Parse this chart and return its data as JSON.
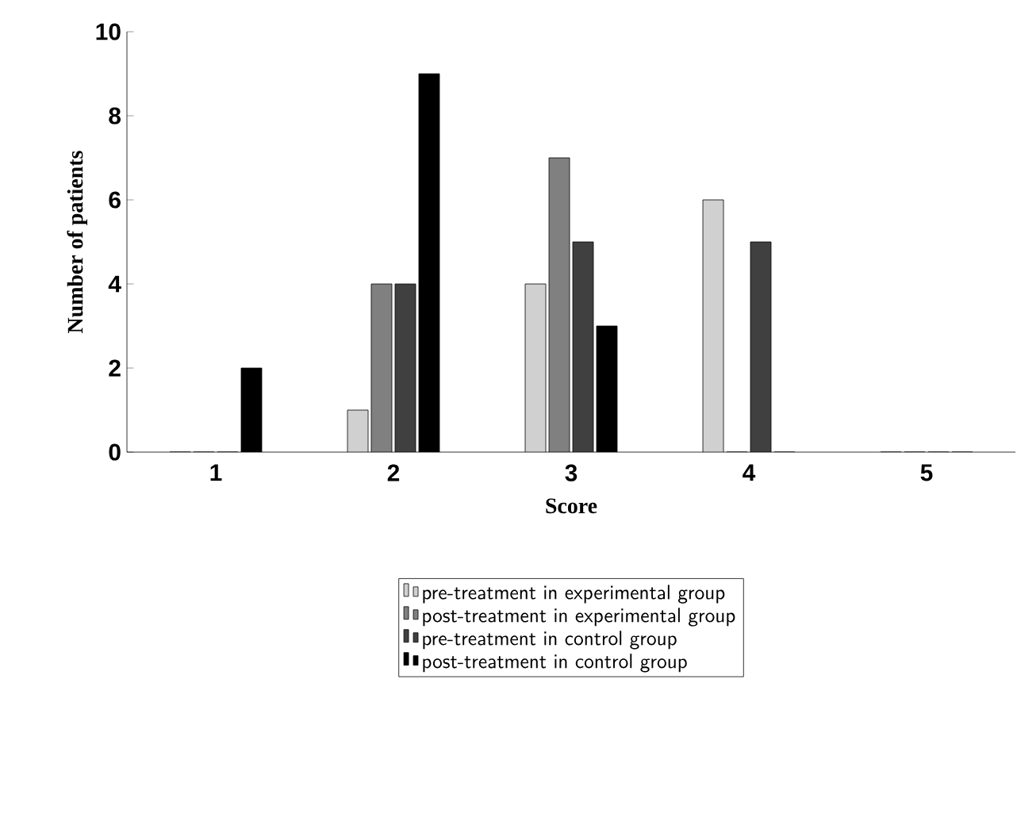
{
  "chart_data": {
    "type": "bar",
    "xlabel": "Score",
    "ylabel": "Number of patients",
    "categories": [
      "1",
      "2",
      "3",
      "4",
      "5"
    ],
    "series": [
      {
        "name": "pre-treatment in experimental group",
        "color": "#d0d0d0",
        "values": [
          0,
          1,
          4,
          6,
          0
        ]
      },
      {
        "name": "post-treatment in experimental group",
        "color": "#808080",
        "values": [
          0,
          4,
          7,
          0,
          0
        ]
      },
      {
        "name": "pre-treatment in control group",
        "color": "#404040",
        "values": [
          0,
          4,
          5,
          5,
          0
        ]
      },
      {
        "name": "post-treatment in control group",
        "color": "#000000",
        "values": [
          2,
          9,
          3,
          0,
          0
        ]
      }
    ],
    "ylim": [
      0,
      10
    ],
    "yticks": [
      0,
      2,
      4,
      6,
      8,
      10
    ],
    "grid": false,
    "legend": "bottom"
  }
}
